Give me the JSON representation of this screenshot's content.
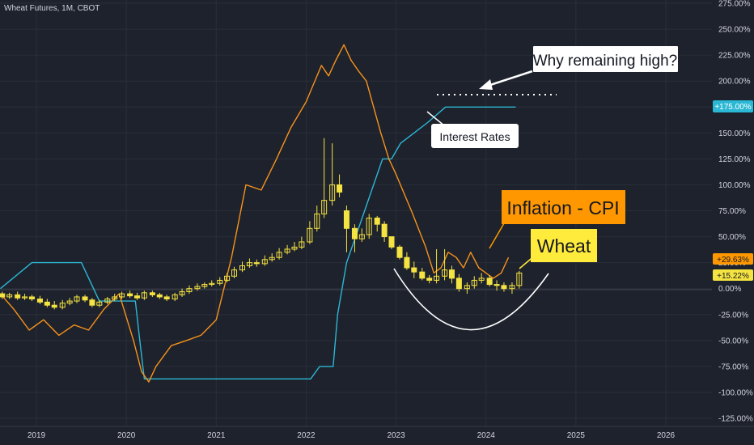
{
  "symbol_title": "Wheat Futures, 1M, CBOT",
  "colors": {
    "background": "#1e222d",
    "grid": "#2a2e39",
    "text": "#d1d4dc",
    "candle": "#f5e342",
    "inflation": "#f7931a",
    "interest": "#2bb8d4",
    "annotation_white": "#ffffff",
    "callout_orange": "#ff9800",
    "callout_yellow": "#ffeb3b"
  },
  "annotations": {
    "question": "Why remaining high?",
    "interest_label": "Interest Rates",
    "inflation_label": "Inflation - CPI",
    "wheat_label": "Wheat"
  },
  "price_badges": {
    "interest": "+175.00%",
    "inflation": "+29.63%",
    "wheat": "+15.22%"
  },
  "chart_data": {
    "type": "line",
    "ylim": [
      -125,
      275
    ],
    "xlim": [
      2018.6,
      2026.8
    ],
    "y_ticks": [
      275,
      250,
      225,
      200,
      175,
      150,
      125,
      100,
      75,
      50,
      25,
      0,
      -25,
      -50,
      -75,
      -100,
      -125
    ],
    "y_tick_labels": [
      "275.00%",
      "250.00%",
      "225.00%",
      "200.00%",
      "175.00%",
      "150.00%",
      "125.00%",
      "100.00%",
      "75.00%",
      "50.00%",
      "25.00%",
      "0.00%",
      "-25.00%",
      "-50.00%",
      "-75.00%",
      "-100.00%",
      "-125.00%"
    ],
    "x_ticks": [
      2019,
      2020,
      2021,
      2022,
      2023,
      2024,
      2025,
      2026
    ],
    "x_tick_labels": [
      "2019",
      "2020",
      "2021",
      "2022",
      "2023",
      "2024",
      "2025",
      "2026"
    ],
    "series": [
      {
        "name": "Interest Rates",
        "x": [
          2018.6,
          2018.95,
          2019.5,
          2019.7,
          2020.1,
          2020.15,
          2020.2,
          2022.05,
          2022.15,
          2022.3,
          2022.35,
          2022.45,
          2022.55,
          2022.65,
          2022.75,
          2022.85,
          2022.95,
          2023.05,
          2023.2,
          2023.35,
          2023.55,
          2023.65,
          2024.33
        ],
        "y": [
          0,
          25,
          25,
          -12,
          -12,
          -50,
          -87,
          -87,
          -75,
          -75,
          -25,
          25,
          50,
          75,
          100,
          125,
          125,
          140,
          150,
          160,
          175,
          175,
          175
        ]
      },
      {
        "name": "Inflation - CPI",
        "x": [
          2018.6,
          2018.75,
          2018.92,
          2019.08,
          2019.25,
          2019.42,
          2019.58,
          2019.75,
          2019.92,
          2020.08,
          2020.17,
          2020.25,
          2020.33,
          2020.5,
          2020.67,
          2020.83,
          2021.0,
          2021.17,
          2021.33,
          2021.5,
          2021.67,
          2021.83,
          2022.0,
          2022.17,
          2022.25,
          2022.33,
          2022.42,
          2022.5,
          2022.58,
          2022.67,
          2022.75,
          2022.83,
          2022.92,
          2023.0,
          2023.17,
          2023.33,
          2023.42,
          2023.5,
          2023.58,
          2023.67,
          2023.75,
          2023.83,
          2023.92,
          2024.0,
          2024.08,
          2024.17,
          2024.25
        ],
        "y": [
          -5,
          -20,
          -40,
          -30,
          -45,
          -35,
          -40,
          -20,
          -5,
          -50,
          -80,
          -90,
          -75,
          -55,
          -50,
          -45,
          -30,
          30,
          100,
          95,
          125,
          155,
          180,
          215,
          205,
          220,
          235,
          220,
          210,
          200,
          175,
          150,
          125,
          110,
          75,
          40,
          15,
          20,
          35,
          30,
          20,
          35,
          20,
          15,
          10,
          15,
          30
        ]
      },
      {
        "name": "Wheat",
        "type": "candlestick",
        "x": [
          2018.62,
          2018.7,
          2018.79,
          2018.87,
          2018.95,
          2019.04,
          2019.12,
          2019.2,
          2019.29,
          2019.37,
          2019.45,
          2019.54,
          2019.62,
          2019.7,
          2019.79,
          2019.87,
          2019.95,
          2020.04,
          2020.12,
          2020.2,
          2020.29,
          2020.37,
          2020.45,
          2020.54,
          2020.62,
          2020.7,
          2020.79,
          2020.87,
          2020.95,
          2021.04,
          2021.12,
          2021.2,
          2021.29,
          2021.37,
          2021.45,
          2021.54,
          2021.62,
          2021.7,
          2021.79,
          2021.87,
          2021.95,
          2022.04,
          2022.12,
          2022.2,
          2022.29,
          2022.37,
          2022.45,
          2022.54,
          2022.62,
          2022.7,
          2022.79,
          2022.87,
          2022.95,
          2023.04,
          2023.12,
          2023.2,
          2023.29,
          2023.37,
          2023.45,
          2023.54,
          2023.62,
          2023.7,
          2023.79,
          2023.87,
          2023.95,
          2024.04,
          2024.12,
          2024.2,
          2024.29,
          2024.37
        ],
        "open": [
          -5,
          -8,
          -6,
          -9,
          -8,
          -10,
          -13,
          -16,
          -18,
          -14,
          -12,
          -8,
          -11,
          -16,
          -13,
          -10,
          -8,
          -5,
          -7,
          -9,
          -4,
          -6,
          -8,
          -10,
          -6,
          -3,
          0,
          2,
          4,
          5,
          8,
          12,
          18,
          22,
          25,
          24,
          28,
          30,
          35,
          38,
          40,
          45,
          58,
          72,
          85,
          100,
          75,
          58,
          48,
          52,
          68,
          62,
          50,
          40,
          30,
          20,
          16,
          10,
          8,
          12,
          18,
          10,
          0,
          3,
          8,
          10,
          4,
          3,
          0,
          3
        ],
        "close": [
          -8,
          -6,
          -9,
          -8,
          -10,
          -13,
          -16,
          -18,
          -14,
          -12,
          -8,
          -11,
          -16,
          -13,
          -10,
          -8,
          -5,
          -7,
          -9,
          -4,
          -6,
          -8,
          -10,
          -6,
          -3,
          0,
          2,
          4,
          5,
          8,
          12,
          18,
          22,
          25,
          24,
          28,
          30,
          35,
          38,
          40,
          45,
          58,
          72,
          85,
          100,
          93,
          58,
          48,
          52,
          68,
          62,
          50,
          40,
          30,
          20,
          16,
          10,
          8,
          12,
          18,
          10,
          0,
          3,
          8,
          10,
          4,
          3,
          0,
          3,
          15
        ],
        "high": [
          -3,
          -4,
          -3,
          -5,
          -6,
          -7,
          -10,
          -12,
          -11,
          -9,
          -6,
          -6,
          -9,
          -11,
          -8,
          -5,
          -3,
          -2,
          -4,
          -2,
          -2,
          -4,
          -6,
          -4,
          0,
          3,
          5,
          6,
          8,
          11,
          15,
          21,
          26,
          29,
          28,
          32,
          34,
          39,
          42,
          45,
          50,
          65,
          80,
          145,
          140,
          110,
          80,
          62,
          58,
          72,
          70,
          65,
          48,
          42,
          35,
          26,
          20,
          13,
          38,
          38,
          22,
          14,
          6,
          12,
          15,
          13,
          8,
          6,
          6,
          17
        ],
        "low": [
          -10,
          -10,
          -11,
          -11,
          -12,
          -15,
          -18,
          -20,
          -20,
          -16,
          -14,
          -13,
          -18,
          -18,
          -15,
          -12,
          -10,
          -9,
          -11,
          -11,
          -8,
          -10,
          -12,
          -12,
          -8,
          -5,
          -2,
          0,
          2,
          3,
          6,
          10,
          16,
          20,
          21,
          22,
          26,
          28,
          33,
          36,
          38,
          43,
          55,
          68,
          80,
          88,
          35,
          35,
          45,
          48,
          55,
          45,
          38,
          28,
          18,
          10,
          8,
          5,
          5,
          8,
          5,
          -3,
          -5,
          0,
          5,
          2,
          -2,
          -3,
          -5,
          0
        ]
      }
    ]
  }
}
